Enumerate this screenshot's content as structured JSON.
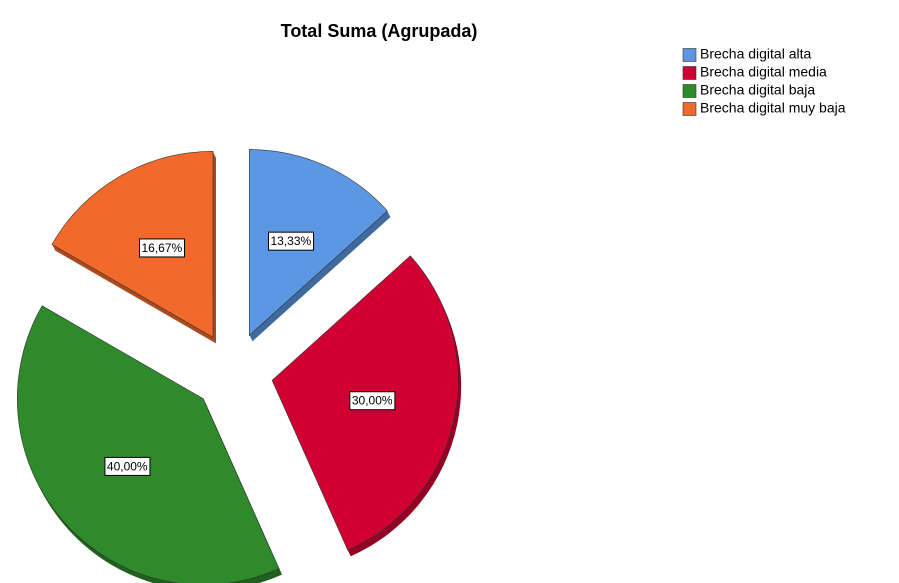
{
  "chart_data": {
    "type": "pie",
    "title": "Total Suma (Agrupada)",
    "categories": [
      "Brecha digital alta",
      "Brecha digital media",
      "Brecha digital baja",
      "Brecha digital muy baja"
    ],
    "values": [
      13.33,
      30,
      40,
      16.67
    ],
    "value_labels": [
      "13,33%",
      "30,00%",
      "40,00%",
      "16,67%"
    ],
    "colors": [
      "#5b97e3",
      "#d10032",
      "#2e8a2b",
      "#f26a2b"
    ],
    "legend": "top-right"
  }
}
